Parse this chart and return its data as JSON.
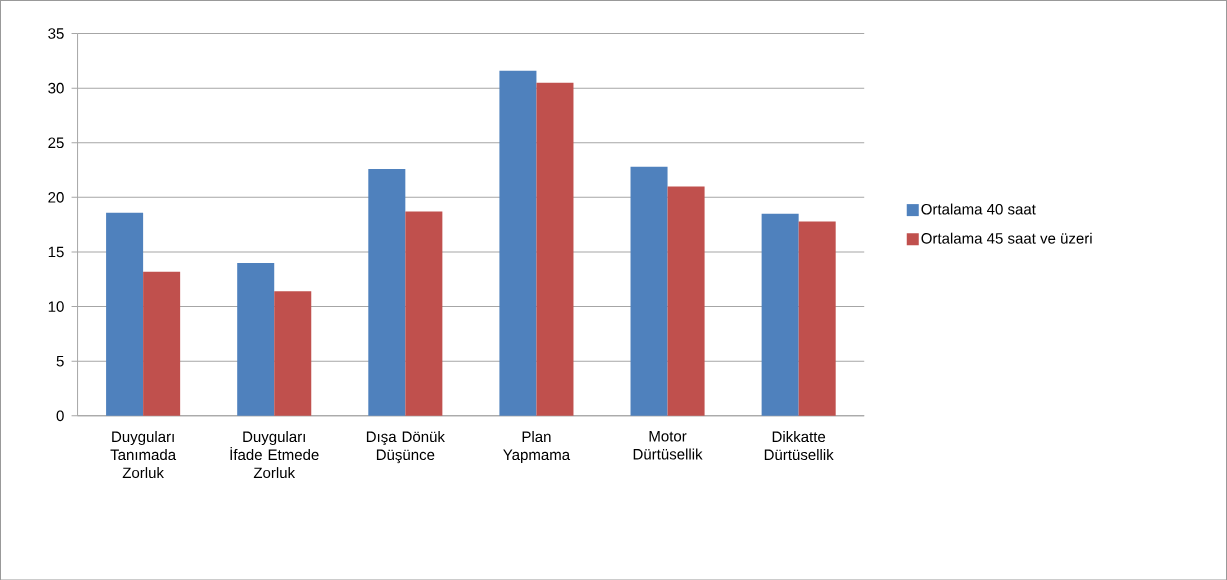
{
  "chart_data": {
    "type": "bar",
    "categories": [
      "Duyguları Tanımada Zorluk",
      "Duyguları İfade Etmede Zorluk",
      "Dışa Dönük Düşünce",
      "Plan Yapmama",
      "Motor Dürtüsellik",
      "Dikkatte Dürtüsellik"
    ],
    "series": [
      {
        "name": "Ortalama 40 saat",
        "color": "#4f81bd",
        "values": [
          18.6,
          14.0,
          22.6,
          31.6,
          22.8,
          18.5
        ]
      },
      {
        "name": "Ortalama 45 saat ve üzeri",
        "color": "#c0504d",
        "values": [
          13.2,
          11.4,
          18.7,
          30.5,
          21.0,
          17.8
        ]
      }
    ],
    "ylim": [
      0,
      35
    ],
    "yticks": [
      0,
      5,
      10,
      15,
      20,
      25,
      30,
      35
    ],
    "grid": "y",
    "legend": "right"
  }
}
